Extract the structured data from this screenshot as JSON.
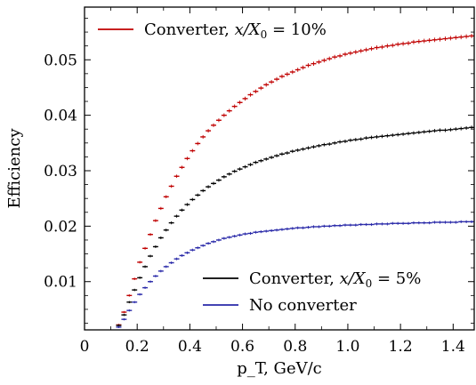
{
  "chart_data": {
    "type": "scatter",
    "xlabel": "p_T, GeV/c",
    "ylabel": "Efficiency",
    "xlim": [
      0,
      1.48
    ],
    "ylim": [
      0.0013,
      0.0595
    ],
    "x_ticks": [
      "0",
      "0.2",
      "0.4",
      "0.6",
      "0.8",
      "1.0",
      "1.2",
      "1.4"
    ],
    "y_ticks": [
      "0.01",
      "0.02",
      "0.03",
      "0.04",
      "0.05"
    ],
    "x_tick_values": [
      0,
      0.2,
      0.4,
      0.6,
      0.8,
      1.0,
      1.2,
      1.4
    ],
    "y_tick_values": [
      0.01,
      0.02,
      0.03,
      0.04,
      0.05
    ],
    "bin_width": 0.02,
    "x": [
      0.13,
      0.15,
      0.17,
      0.19,
      0.21,
      0.23,
      0.25,
      0.27,
      0.29,
      0.31,
      0.33,
      0.35,
      0.37,
      0.39,
      0.41,
      0.43,
      0.45,
      0.47,
      0.49,
      0.51,
      0.53,
      0.55,
      0.57,
      0.59,
      0.61,
      0.63,
      0.65,
      0.67,
      0.69,
      0.71,
      0.73,
      0.75,
      0.77,
      0.79,
      0.81,
      0.83,
      0.85,
      0.87,
      0.89,
      0.91,
      0.93,
      0.95,
      0.97,
      0.99,
      1.01,
      1.03,
      1.05,
      1.07,
      1.09,
      1.11,
      1.13,
      1.15,
      1.17,
      1.19,
      1.21,
      1.23,
      1.25,
      1.27,
      1.29,
      1.31,
      1.33,
      1.35,
      1.37,
      1.39,
      1.41,
      1.43,
      1.45,
      1.47
    ],
    "series": [
      {
        "name": "Converter, x/X0 = 10%",
        "color": "#c00000",
        "legend_parts": [
          "Converter, ",
          "x/X",
          "0",
          " = 10%"
        ],
        "values": [
          0.0022,
          0.0045,
          0.0075,
          0.0105,
          0.0135,
          0.016,
          0.0185,
          0.021,
          0.0232,
          0.0253,
          0.0272,
          0.029,
          0.0306,
          0.0322,
          0.0336,
          0.0349,
          0.0361,
          0.0372,
          0.0382,
          0.0391,
          0.04,
          0.0408,
          0.0416,
          0.0423,
          0.043,
          0.0437,
          0.0443,
          0.0449,
          0.0455,
          0.046,
          0.0465,
          0.047,
          0.0474,
          0.0478,
          0.0482,
          0.0486,
          0.049,
          0.0493,
          0.0496,
          0.0499,
          0.0502,
          0.0505,
          0.0507,
          0.051,
          0.0512,
          0.0514,
          0.0516,
          0.0518,
          0.052,
          0.0522,
          0.0523,
          0.0525,
          0.0526,
          0.0528,
          0.0529,
          0.053,
          0.0532,
          0.0533,
          0.0534,
          0.0535,
          0.0536,
          0.0537,
          0.0538,
          0.0539,
          0.054,
          0.0541,
          0.0542,
          0.0543
        ]
      },
      {
        "name": "Converter, x/X0 = 5%",
        "color": "#000000",
        "legend_parts": [
          "Converter, ",
          "x/X",
          "0",
          " = 5%"
        ],
        "values": [
          0.0021,
          0.004,
          0.0063,
          0.0085,
          0.0107,
          0.0127,
          0.0146,
          0.0163,
          0.0179,
          0.0193,
          0.0206,
          0.0218,
          0.0229,
          0.0239,
          0.0248,
          0.0256,
          0.0264,
          0.0271,
          0.0277,
          0.0283,
          0.0289,
          0.0294,
          0.0299,
          0.0303,
          0.0307,
          0.0311,
          0.0315,
          0.0318,
          0.0321,
          0.0324,
          0.0327,
          0.033,
          0.0332,
          0.0335,
          0.0337,
          0.0339,
          0.0341,
          0.0343,
          0.0345,
          0.0347,
          0.0348,
          0.035,
          0.0352,
          0.0353,
          0.0355,
          0.0356,
          0.0357,
          0.0359,
          0.036,
          0.0361,
          0.0362,
          0.0363,
          0.0364,
          0.0365,
          0.0366,
          0.0367,
          0.0368,
          0.0369,
          0.037,
          0.0371,
          0.0372,
          0.0373,
          0.0373,
          0.0374,
          0.0375,
          0.0376,
          0.0377,
          0.0378
        ]
      },
      {
        "name": "No converter",
        "color": "#2828a8",
        "legend_parts": [
          "No converter"
        ],
        "values": [
          0.0018,
          0.0032,
          0.0048,
          0.0063,
          0.0077,
          0.0089,
          0.01,
          0.011,
          0.0119,
          0.0127,
          0.0134,
          0.0141,
          0.0147,
          0.0152,
          0.0157,
          0.0161,
          0.0165,
          0.0169,
          0.0172,
          0.0175,
          0.0178,
          0.018,
          0.0182,
          0.0184,
          0.0186,
          0.0187,
          0.0189,
          0.019,
          0.0191,
          0.0192,
          0.0193,
          0.0194,
          0.0195,
          0.0196,
          0.0197,
          0.0197,
          0.0198,
          0.0199,
          0.0199,
          0.02,
          0.02,
          0.0201,
          0.0201,
          0.0202,
          0.0202,
          0.0202,
          0.0203,
          0.0203,
          0.0203,
          0.0204,
          0.0204,
          0.0204,
          0.0205,
          0.0205,
          0.0205,
          0.0205,
          0.0206,
          0.0206,
          0.0206,
          0.0206,
          0.0207,
          0.0207,
          0.0207,
          0.0207,
          0.0207,
          0.0208,
          0.0208,
          0.0208
        ]
      }
    ],
    "legend": [
      {
        "position": "top-left",
        "series": [
          0
        ]
      },
      {
        "position": "lower-right",
        "series": [
          1,
          2
        ]
      }
    ]
  }
}
